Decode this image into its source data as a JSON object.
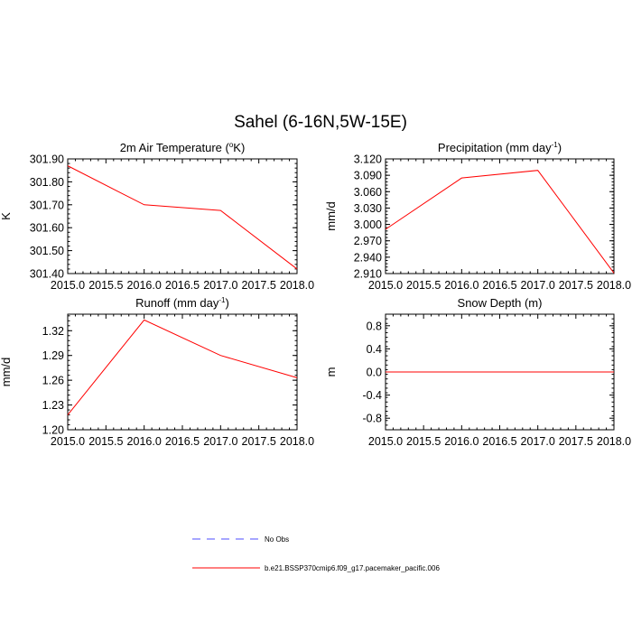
{
  "figure_title": "Sahel (6-16N,5W-15E)",
  "colors": {
    "series": "#ff0000",
    "obs": "#4c4cff",
    "axis": "#000000"
  },
  "legend": {
    "obs_label": "No Obs",
    "model_label": "b.e21.BSSP370cmip6.f09_g17.pacemaker_pacific.006"
  },
  "chart_data": [
    {
      "type": "line",
      "title": "2m Air Temperature (",
      "title_sup": "o",
      "title_after": "K)",
      "ylabel": "K",
      "x": [
        2015,
        2016,
        2017,
        2018
      ],
      "xlim": [
        2015,
        2018
      ],
      "xticks": [
        "2015.0",
        "2015.5",
        "2016.0",
        "2016.5",
        "2017.0",
        "2017.5",
        "2018.0"
      ],
      "series": [
        {
          "values": [
            301.87,
            301.7,
            301.675,
            301.42
          ]
        }
      ],
      "ylim": [
        301.4,
        301.9
      ],
      "yticks": [
        "301.40",
        "301.50",
        "301.60",
        "301.70",
        "301.80",
        "301.90"
      ],
      "grid": false
    },
    {
      "type": "line",
      "title": "Precipitation (mm day",
      "title_sup": "-1",
      "title_after": ")",
      "ylabel": "mm/d",
      "x": [
        2015,
        2016,
        2017,
        2018
      ],
      "xlim": [
        2015,
        2018
      ],
      "xticks": [
        "2015.0",
        "2015.5",
        "2016.0",
        "2016.5",
        "2017.0",
        "2017.5",
        "2018.0"
      ],
      "series": [
        {
          "values": [
            2.991,
            3.085,
            3.099,
            2.911
          ]
        }
      ],
      "ylim": [
        2.91,
        3.12
      ],
      "yticks": [
        "2.910",
        "2.940",
        "2.970",
        "3.000",
        "3.030",
        "3.060",
        "3.090",
        "3.120"
      ],
      "grid": false
    },
    {
      "type": "line",
      "title": "Runoff (mm day",
      "title_sup": "-1",
      "title_after": ")",
      "ylabel": "mm/d",
      "x": [
        2015,
        2016,
        2017,
        2018
      ],
      "xlim": [
        2015,
        2018
      ],
      "xticks": [
        "2015.0",
        "2015.5",
        "2016.0",
        "2016.5",
        "2017.0",
        "2017.5",
        "2018.0"
      ],
      "series": [
        {
          "values": [
            1.218,
            1.333,
            1.29,
            1.263
          ]
        }
      ],
      "ylim": [
        1.2,
        1.34
      ],
      "yticks": [
        "1.20",
        "1.23",
        "1.26",
        "1.29",
        "1.32"
      ],
      "grid": false
    },
    {
      "type": "line",
      "title": "Snow Depth (m)",
      "title_sup": "",
      "title_after": "",
      "ylabel": "m",
      "x": [
        2015,
        2016,
        2017,
        2018
      ],
      "xlim": [
        2015,
        2018
      ],
      "xticks": [
        "2015.0",
        "2015.5",
        "2016.0",
        "2016.5",
        "2017.0",
        "2017.5",
        "2018.0"
      ],
      "series": [
        {
          "values": [
            0.0,
            0.0,
            0.0,
            0.0
          ]
        }
      ],
      "ylim": [
        -1.0,
        1.0
      ],
      "yticks": [
        "-0.8",
        "-0.4",
        "0.0",
        "0.4",
        "0.8"
      ],
      "grid": false
    }
  ]
}
